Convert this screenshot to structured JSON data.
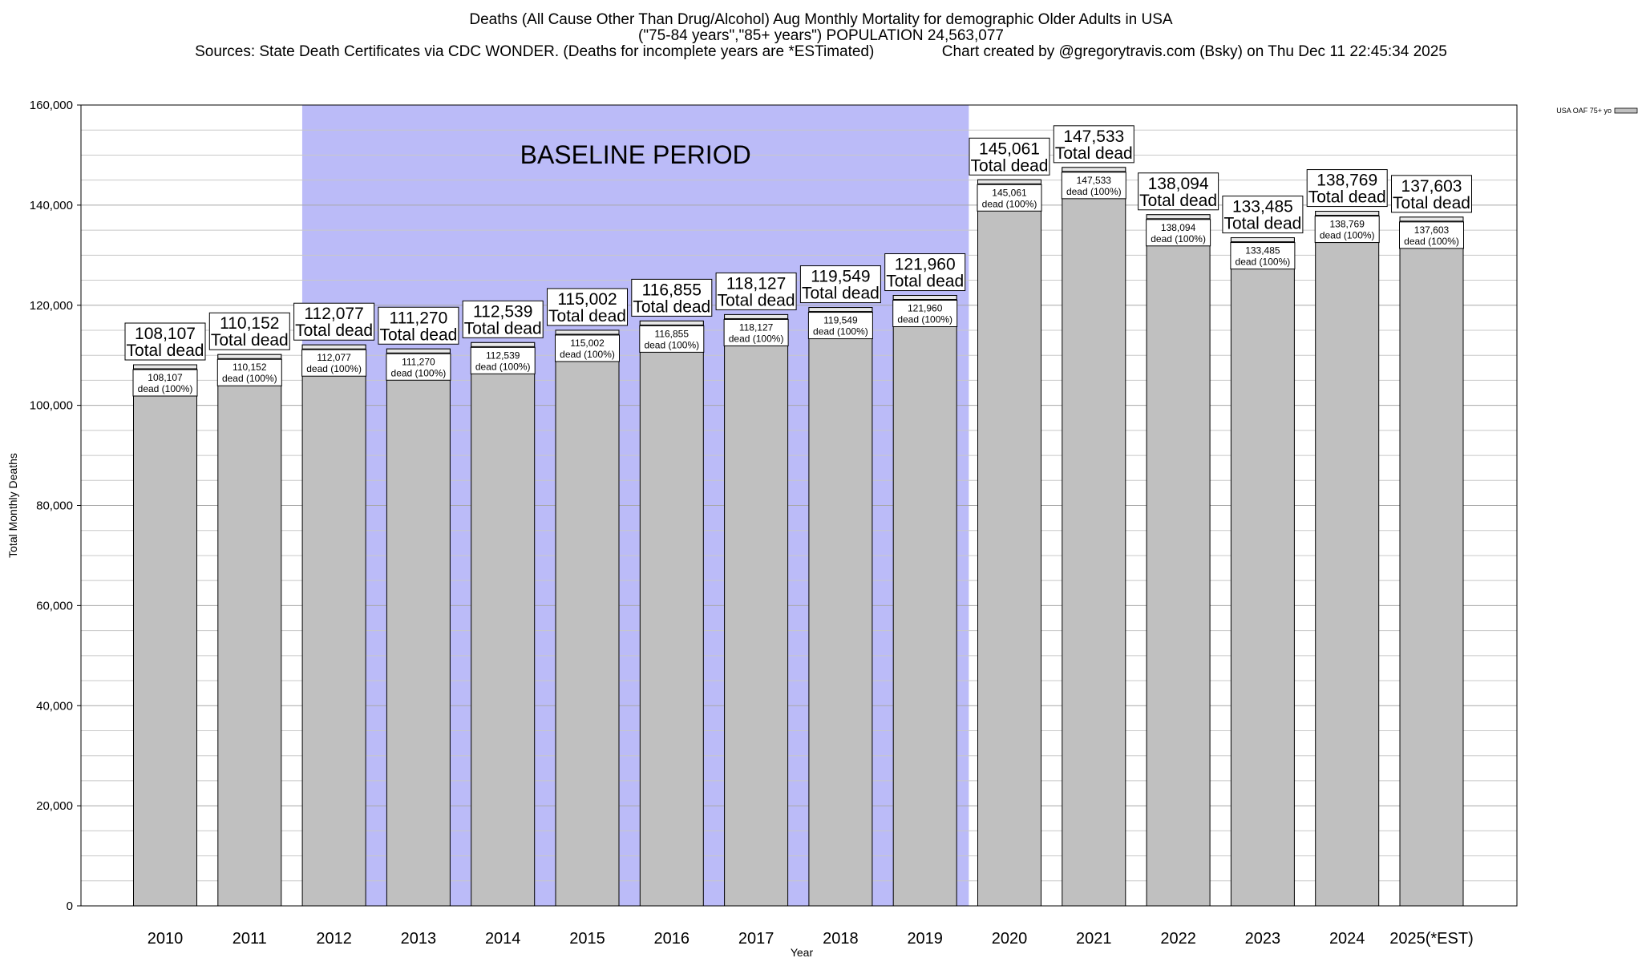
{
  "titles": {
    "line1": "Deaths (All Cause Other Than Drug/Alcohol) Aug Monthly Mortality for demographic Older Adults in USA",
    "line2": "(\"75-84 years\",\"85+ years\") POPULATION 24,563,077",
    "line3": "Sources: State Death Certificates via CDC WONDER. (Deaths for incomplete years are *ESTimated)                Chart created by @gregorytravis.com (Bsky) on Thu Dec 11 22:45:34 2025"
  },
  "chart_data": {
    "type": "bar",
    "title": "Deaths (All Cause Other Than Drug/Alcohol) Aug Monthly Mortality for demographic Older Adults in USA",
    "xlabel": "Year",
    "ylabel": "Total Monthly Deaths",
    "ylim": [
      0,
      160000
    ],
    "yticks": [
      0,
      20000,
      40000,
      60000,
      80000,
      100000,
      120000,
      140000,
      160000
    ],
    "ytick_labels": [
      "0",
      "20,000",
      "40,000",
      "60,000",
      "80,000",
      "100,000",
      "120,000",
      "140,000",
      "160,000"
    ],
    "grid": true,
    "legend": {
      "label": "USA OAF 75+ yo",
      "placement": "top-right"
    },
    "baseline_label": "BASELINE PERIOD",
    "baseline_categories": [
      "2012",
      "2019"
    ],
    "categories": [
      "2010",
      "2011",
      "2012",
      "2013",
      "2014",
      "2015",
      "2016",
      "2017",
      "2018",
      "2019",
      "2020",
      "2021",
      "2022",
      "2023",
      "2024",
      "2025(*EST)"
    ],
    "values": [
      108107,
      110152,
      112077,
      111270,
      112539,
      115002,
      116855,
      118127,
      119549,
      121960,
      145061,
      147533,
      138094,
      133485,
      138769,
      137603
    ],
    "value_labels": [
      "108,107",
      "110,152",
      "112,077",
      "111,270",
      "112,539",
      "115,002",
      "116,855",
      "118,127",
      "119,549",
      "121,960",
      "145,061",
      "147,533",
      "138,094",
      "133,485",
      "138,769",
      "137,603"
    ],
    "total_suffix": "Total dead",
    "segment_suffix": "dead (100%)",
    "colors": {
      "bar": "#c0c0c0",
      "bar_top": "#e8e8e8",
      "baseline": "#bbbbf8",
      "grid": "#c8c8c8",
      "axis": "#000000"
    }
  }
}
